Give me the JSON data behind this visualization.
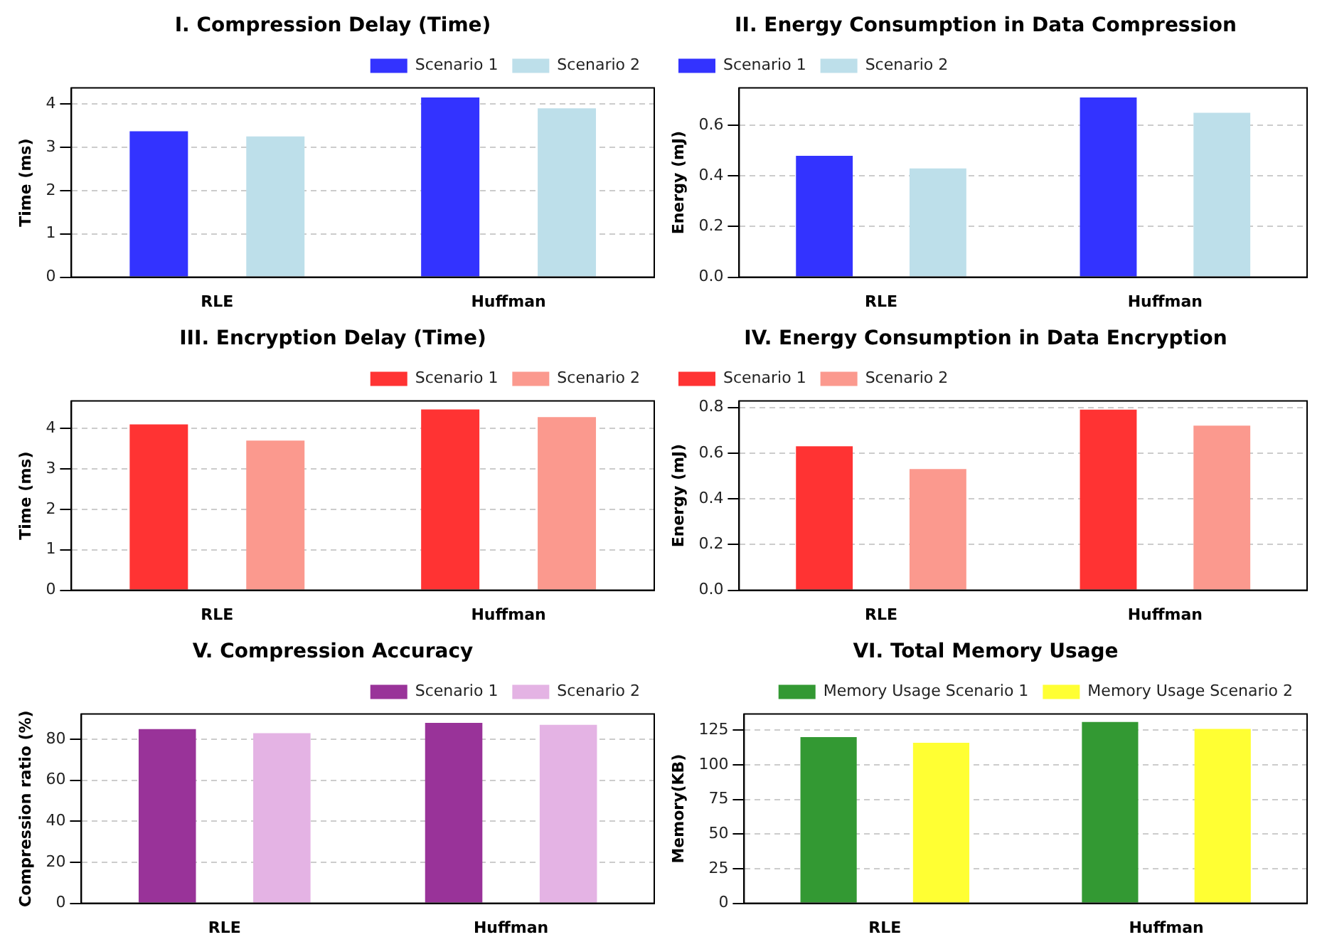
{
  "chart_data": [
    {
      "type": "bar",
      "title": "I. Compression Delay (Time)",
      "ylabel": "Time (ms)",
      "categories": [
        "RLE",
        "Huffman"
      ],
      "series": [
        {
          "name": "Scenario 1",
          "color": "#3333ff",
          "values": [
            3.37,
            4.15
          ]
        },
        {
          "name": "Scenario 2",
          "color": "#bddfea",
          "values": [
            3.25,
            3.9
          ]
        }
      ],
      "ylim": [
        0,
        4.37
      ],
      "yticks": [
        0,
        1,
        2,
        3,
        4
      ],
      "grid": "y",
      "legend": "top right"
    },
    {
      "type": "bar",
      "title": "II. Energy Consumption in Data Compression",
      "ylabel": "Energy (mJ)",
      "categories": [
        "RLE",
        "Huffman"
      ],
      "series": [
        {
          "name": "Scenario 1",
          "color": "#3333ff",
          "values": [
            0.48,
            0.71
          ]
        },
        {
          "name": "Scenario 2",
          "color": "#bddfea",
          "values": [
            0.43,
            0.65
          ]
        }
      ],
      "ylim": [
        0,
        0.748
      ],
      "yticks": [
        {
          "value": 0,
          "label": "0.0"
        },
        0.2,
        0.4,
        0.6
      ],
      "grid": "y",
      "legend": "top left"
    },
    {
      "type": "bar",
      "title": "III. Encryption Delay (Time)",
      "ylabel": "Time (ms)",
      "categories": [
        "RLE",
        "Huffman"
      ],
      "series": [
        {
          "name": "Scenario 1",
          "color": "#ff3333",
          "values": [
            4.1,
            4.47
          ]
        },
        {
          "name": "Scenario 2",
          "color": "#fb998e",
          "values": [
            3.7,
            4.28
          ]
        }
      ],
      "ylim": [
        0,
        4.68
      ],
      "yticks": [
        0,
        1,
        2,
        3,
        4
      ],
      "grid": "y",
      "legend": "top right"
    },
    {
      "type": "bar",
      "title": "IV. Energy Consumption in Data Encryption",
      "ylabel": "Energy (mJ)",
      "categories": [
        "RLE",
        "Huffman"
      ],
      "series": [
        {
          "name": "Scenario 1",
          "color": "#ff3333",
          "values": [
            0.63,
            0.79
          ]
        },
        {
          "name": "Scenario 2",
          "color": "#fb998e",
          "values": [
            0.53,
            0.72
          ]
        }
      ],
      "ylim": [
        0,
        0.828
      ],
      "yticks": [
        {
          "value": 0,
          "label": "0.0"
        },
        0.2,
        0.4,
        0.6,
        0.8
      ],
      "grid": "y",
      "legend": "top left"
    },
    {
      "type": "bar",
      "title": "V. Compression Accuracy",
      "ylabel": "Compression ratio (%)",
      "categories": [
        "RLE",
        "Huffman"
      ],
      "series": [
        {
          "name": "Scenario 1",
          "color": "#993399",
          "values": [
            85,
            88
          ]
        },
        {
          "name": "Scenario 2",
          "color": "#e4b3e4",
          "values": [
            83,
            87
          ]
        }
      ],
      "ylim": [
        0,
        92.3
      ],
      "yticks": [
        0,
        20,
        40,
        60,
        80
      ],
      "grid": "y",
      "legend": "top right"
    },
    {
      "type": "bar",
      "title": "VI. Total Memory Usage",
      "ylabel": "Memory(KB)",
      "categories": [
        "RLE",
        "Huffman"
      ],
      "series": [
        {
          "name": "Memory Usage Scenario 1",
          "color": "#339933",
          "values": [
            120,
            131
          ]
        },
        {
          "name": "Memory Usage Scenario 2",
          "color": "#ffff33",
          "values": [
            116,
            126
          ]
        }
      ],
      "ylim": [
        0,
        136.7
      ],
      "yticks": [
        0,
        25,
        50,
        75,
        100,
        125
      ],
      "grid": "y",
      "legend": "top right"
    }
  ]
}
